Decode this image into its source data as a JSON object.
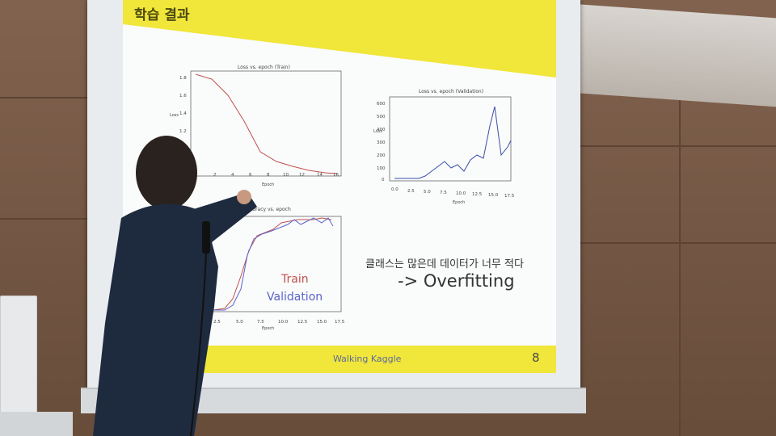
{
  "slide": {
    "title": "학습 결과",
    "footer": "Walking Kaggle",
    "page_number": "8",
    "note_korean": "클래스는 많은데 데이터가 너무 적다",
    "note_main": "-> Overfitting",
    "legend_train": "Train",
    "legend_validation": "Validation"
  },
  "charts": {
    "train_loss": {
      "title": "Loss vs. epoch (Train)",
      "xlabel": "Epoch",
      "ylabel": "Loss",
      "yticks": [
        "1.8",
        "1.6",
        "1.4",
        "1.2"
      ],
      "xticks": [
        "2",
        "4",
        "6",
        "8",
        "10",
        "12",
        "14",
        "16"
      ]
    },
    "val_loss": {
      "title": "Loss vs. epoch (Validation)",
      "xlabel": "Epoch",
      "ylabel": "Loss",
      "yticks": [
        "600",
        "500",
        "400",
        "300",
        "200",
        "100",
        "0"
      ],
      "xticks": [
        "0.0",
        "2.5",
        "5.0",
        "7.5",
        "10.0",
        "12.5",
        "15.0",
        "17.5"
      ]
    },
    "accuracy": {
      "title": "accuracy vs. epoch",
      "xlabel": "Epoch",
      "xticks": [
        "2.5",
        "5.0",
        "7.5",
        "10.0",
        "12.5",
        "15.0",
        "17.5"
      ]
    }
  },
  "colors": {
    "slide_accent": "#f1e63a",
    "train": "#c0504d",
    "validation": "#5a63c9"
  }
}
